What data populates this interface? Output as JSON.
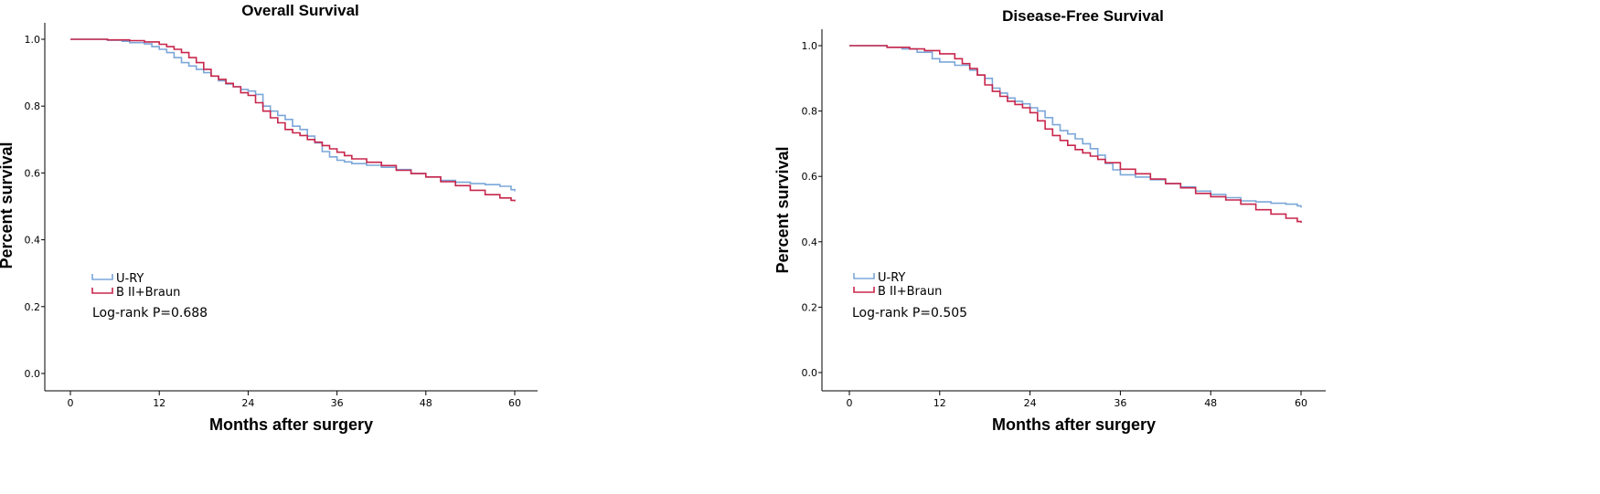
{
  "chart_data": [
    {
      "type": "line",
      "title": "Overall Survival",
      "xlabel": "Months after surgery",
      "ylabel": "Percent survival",
      "xlim": [
        0,
        60
      ],
      "ylim": [
        0,
        1.0
      ],
      "x_ticks": [
        "0",
        "12",
        "24",
        "36",
        "48",
        "60"
      ],
      "y_ticks": [
        "0.0",
        "0.2",
        "0.4",
        "0.6",
        "0.8",
        "1.0"
      ],
      "legend_position": "lower-left",
      "grid": false,
      "annotation": "Log-rank P=0.688",
      "series": [
        {
          "name": "U-RY",
          "color": "#7BA7D9",
          "x": [
            0,
            5,
            7,
            8,
            10,
            11,
            12,
            13,
            14,
            15,
            16,
            17,
            18,
            19,
            20,
            21,
            22,
            23,
            24,
            25,
            26,
            27,
            28,
            29,
            30,
            31,
            32,
            33,
            34,
            35,
            36,
            37,
            38,
            40,
            42,
            44,
            46,
            48,
            50,
            52,
            54,
            56,
            58,
            59.5,
            60
          ],
          "values": [
            1.0,
            0.997,
            0.994,
            0.99,
            0.986,
            0.978,
            0.97,
            0.96,
            0.945,
            0.93,
            0.92,
            0.91,
            0.9,
            0.89,
            0.876,
            0.866,
            0.858,
            0.85,
            0.845,
            0.835,
            0.8,
            0.785,
            0.772,
            0.76,
            0.74,
            0.73,
            0.71,
            0.69,
            0.664,
            0.648,
            0.638,
            0.633,
            0.628,
            0.623,
            0.617,
            0.61,
            0.598,
            0.588,
            0.578,
            0.572,
            0.568,
            0.565,
            0.56,
            0.55,
            0.545
          ]
        },
        {
          "name": "B II+Braun",
          "color": "#C8264B",
          "x": [
            0,
            5,
            8,
            10,
            12,
            13,
            14,
            15,
            16,
            17,
            18,
            19,
            20,
            21,
            22,
            23,
            24,
            25,
            26,
            27,
            28,
            29,
            30,
            31,
            32,
            33,
            34,
            35,
            36,
            37,
            38,
            40,
            42,
            44,
            46,
            48,
            50,
            52,
            54,
            56,
            58,
            59.5,
            60
          ],
          "values": [
            1.0,
            0.998,
            0.996,
            0.992,
            0.985,
            0.978,
            0.97,
            0.96,
            0.945,
            0.93,
            0.91,
            0.89,
            0.88,
            0.868,
            0.858,
            0.84,
            0.832,
            0.81,
            0.785,
            0.765,
            0.75,
            0.73,
            0.72,
            0.712,
            0.7,
            0.692,
            0.682,
            0.672,
            0.662,
            0.652,
            0.642,
            0.632,
            0.622,
            0.608,
            0.598,
            0.588,
            0.574,
            0.562,
            0.548,
            0.535,
            0.525,
            0.518,
            0.515
          ]
        }
      ]
    },
    {
      "type": "line",
      "title": "Disease-Free Survival",
      "xlabel": "Months after surgery",
      "ylabel": "Percent survival",
      "xlim": [
        0,
        60
      ],
      "ylim": [
        0,
        1.0
      ],
      "x_ticks": [
        "0",
        "12",
        "24",
        "36",
        "48",
        "60"
      ],
      "y_ticks": [
        "0.0",
        "0.2",
        "0.4",
        "0.6",
        "0.8",
        "1.0"
      ],
      "legend_position": "lower-left",
      "grid": false,
      "annotation": "Log-rank P=0.505",
      "series": [
        {
          "name": "U-RY",
          "color": "#7BA7D9",
          "x": [
            0,
            5,
            7,
            9,
            11,
            12,
            14,
            16,
            17,
            18,
            19,
            20,
            21,
            22,
            23,
            24,
            25,
            26,
            27,
            28,
            29,
            30,
            31,
            32,
            33,
            34,
            35,
            36,
            38,
            40,
            42,
            44,
            46,
            48,
            50,
            52,
            54,
            56,
            58,
            59.5,
            60
          ],
          "values": [
            1.0,
            0.995,
            0.99,
            0.98,
            0.96,
            0.95,
            0.94,
            0.925,
            0.91,
            0.9,
            0.87,
            0.855,
            0.84,
            0.83,
            0.822,
            0.81,
            0.8,
            0.78,
            0.758,
            0.74,
            0.73,
            0.715,
            0.7,
            0.685,
            0.665,
            0.64,
            0.62,
            0.605,
            0.598,
            0.59,
            0.578,
            0.568,
            0.555,
            0.545,
            0.535,
            0.525,
            0.522,
            0.518,
            0.515,
            0.51,
            0.505
          ]
        },
        {
          "name": "B II+Braun",
          "color": "#C8264B",
          "x": [
            0,
            5,
            8,
            10,
            12,
            14,
            15,
            16,
            17,
            18,
            19,
            20,
            21,
            22,
            23,
            24,
            25,
            26,
            27,
            28,
            29,
            30,
            31,
            32,
            33,
            34,
            36,
            38,
            40,
            42,
            44,
            46,
            48,
            50,
            52,
            54,
            56,
            58,
            59.5,
            60
          ],
          "values": [
            1.0,
            0.995,
            0.99,
            0.985,
            0.975,
            0.96,
            0.945,
            0.93,
            0.91,
            0.88,
            0.86,
            0.845,
            0.83,
            0.82,
            0.81,
            0.795,
            0.77,
            0.745,
            0.725,
            0.71,
            0.695,
            0.682,
            0.672,
            0.662,
            0.652,
            0.642,
            0.622,
            0.608,
            0.592,
            0.578,
            0.565,
            0.548,
            0.538,
            0.528,
            0.515,
            0.498,
            0.485,
            0.472,
            0.462,
            0.458
          ]
        }
      ]
    }
  ]
}
